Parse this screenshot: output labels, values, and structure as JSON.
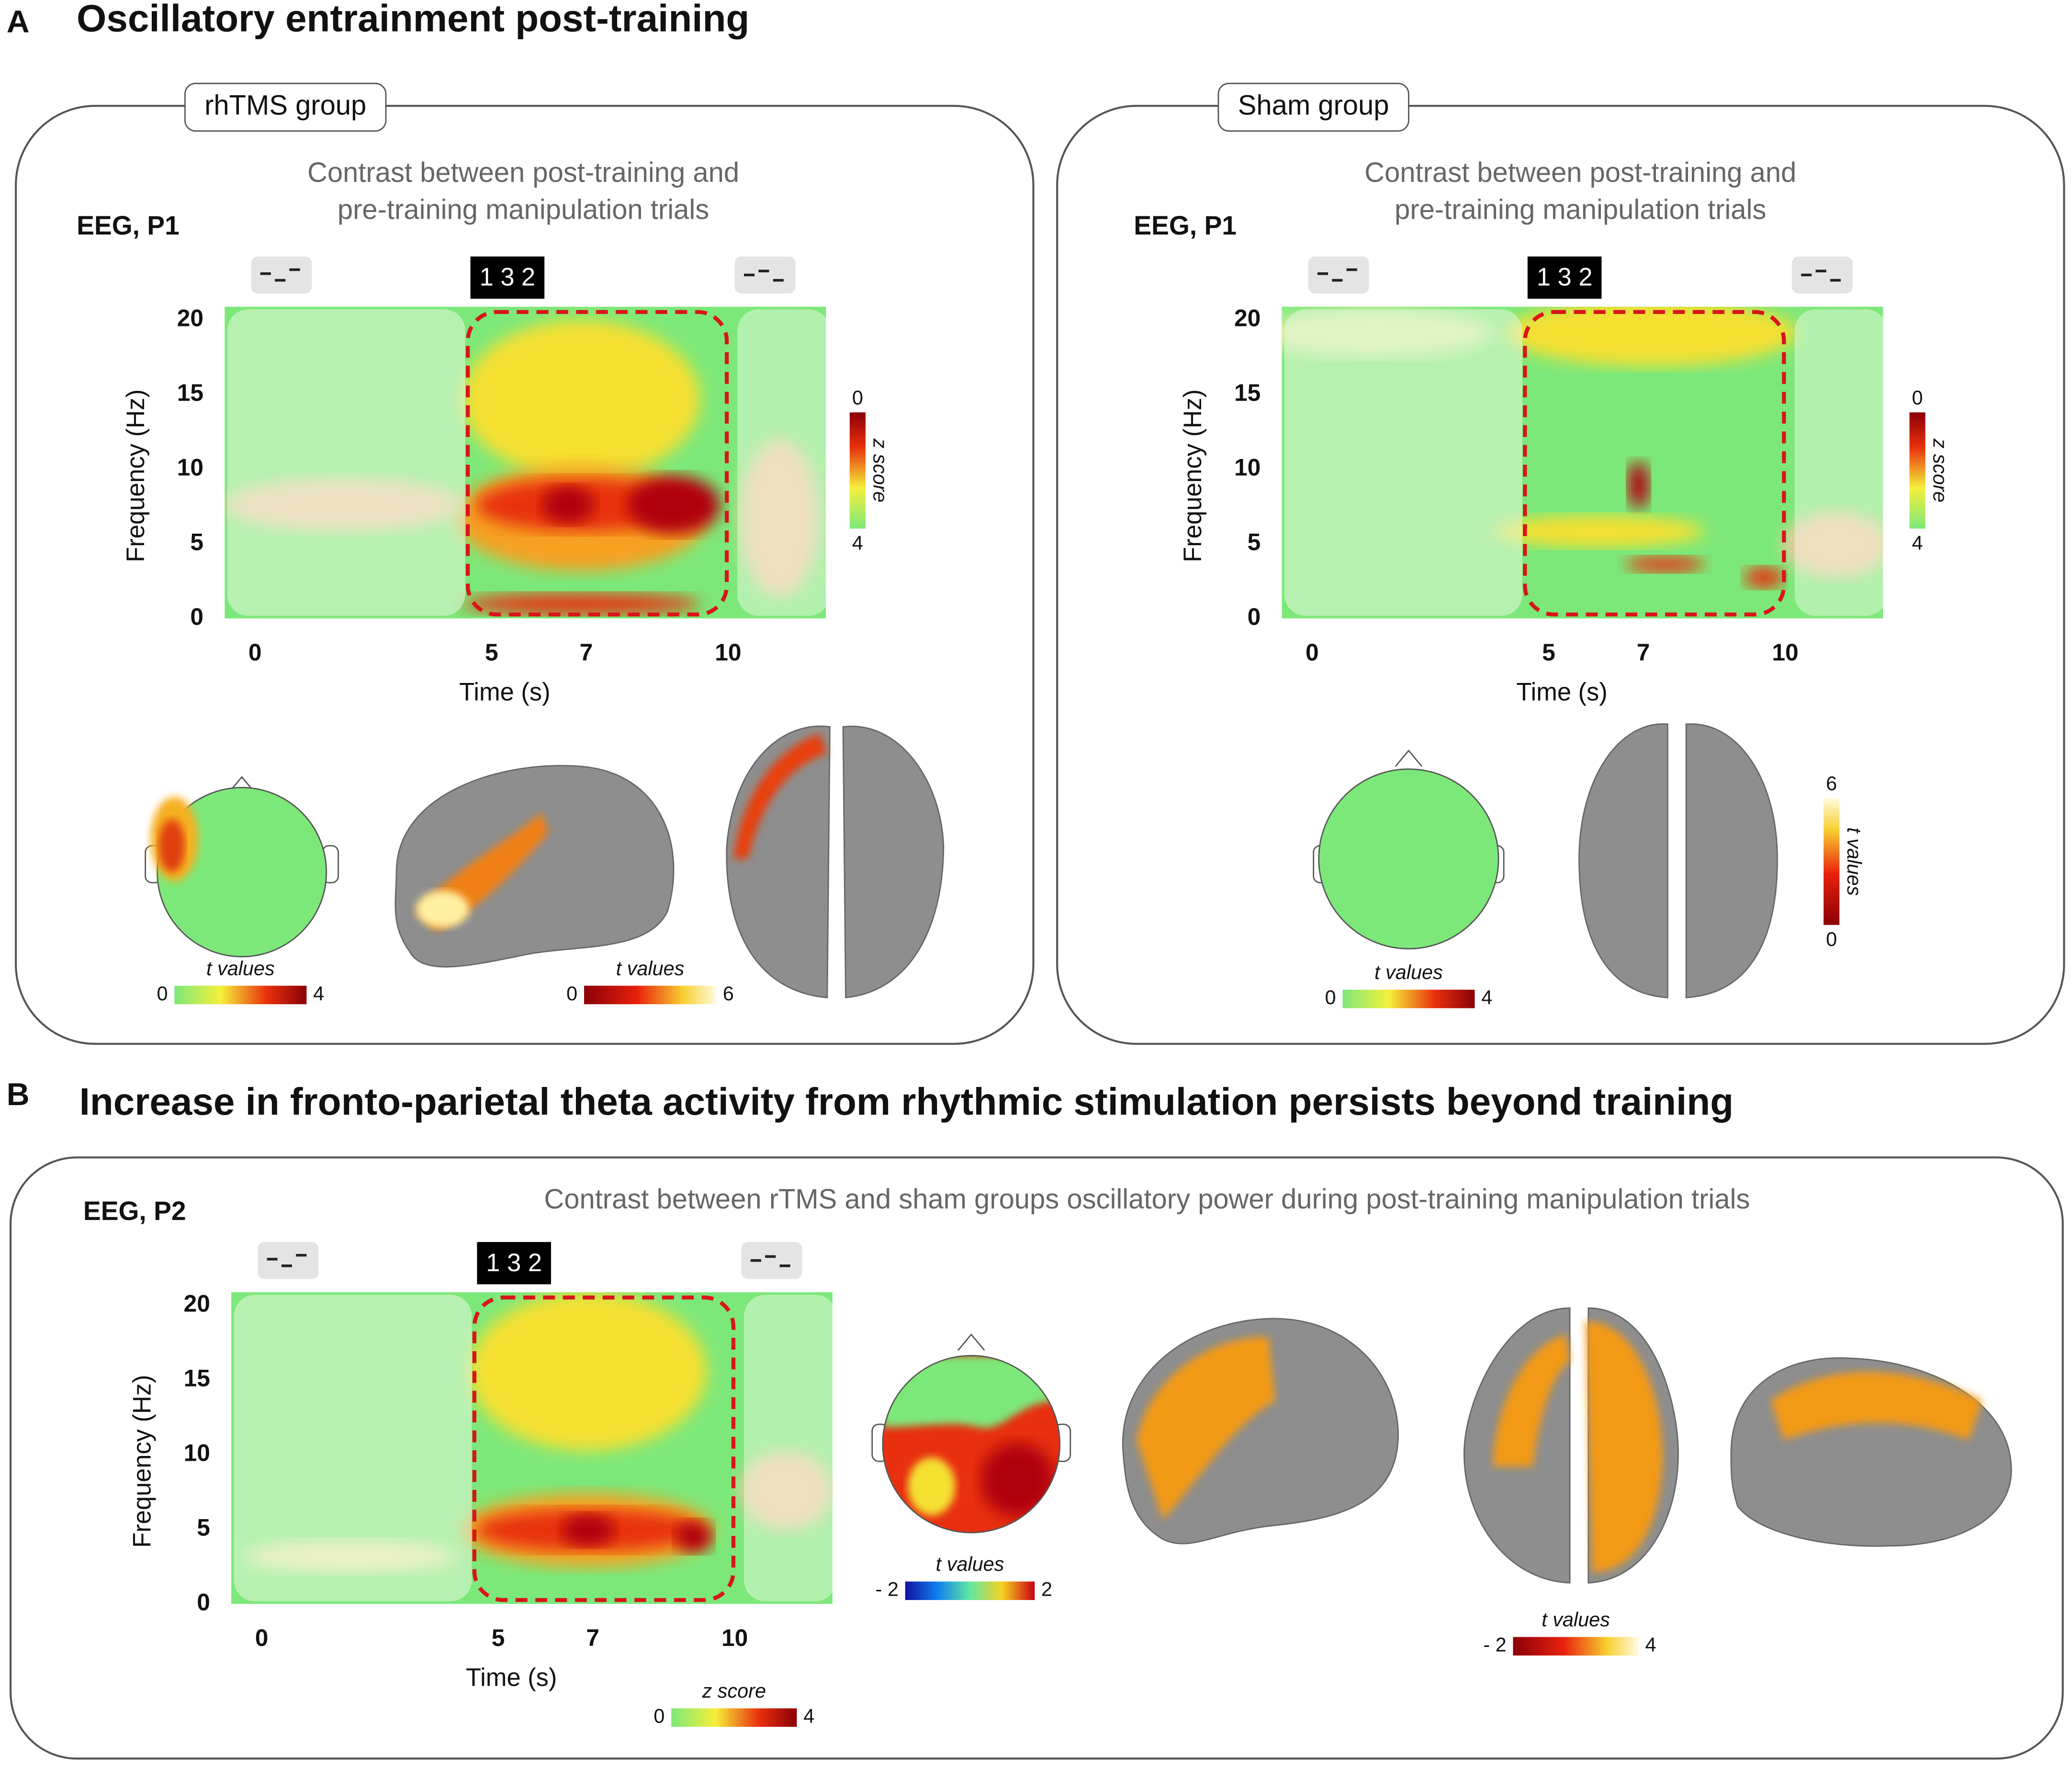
{
  "panel_a": {
    "letter": "A",
    "title": "Oscillatory entrainment post-training",
    "groups": [
      {
        "label": "rhTMS group",
        "subtitle": [
          "Contrast between post-training and",
          "pre-training manipulation trials"
        ],
        "eeg_label": "EEG, P1",
        "sequence": "1 3 2",
        "y_axis_label": "Frequency (Hz)",
        "y_ticks": [
          0,
          5,
          10,
          15,
          20
        ],
        "x_axis_label": "Time (s)",
        "x_ticks": [
          0,
          5,
          7,
          10
        ],
        "spectrogram_scale": {
          "label": "z score",
          "min": 0,
          "max": 4
        },
        "topo_scale": {
          "label": "t values",
          "min": 0,
          "max": 4
        },
        "brain_scale": {
          "label": "t values",
          "min": 0,
          "max": 6
        }
      },
      {
        "label": "Sham group",
        "subtitle": [
          "Contrast between post-training and",
          "pre-training manipulation trials"
        ],
        "eeg_label": "EEG, P1",
        "sequence": "1 3 2",
        "y_axis_label": "Frequency (Hz)",
        "y_ticks": [
          0,
          5,
          10,
          15,
          20
        ],
        "x_axis_label": "Time (s)",
        "x_ticks": [
          0,
          5,
          7,
          10
        ],
        "spectrogram_scale": {
          "label": "z score",
          "min": 0,
          "max": 4
        },
        "topo_scale": {
          "label": "t values",
          "min": 0,
          "max": 4
        },
        "brain_scale": {
          "label": "t values",
          "min": 0,
          "max": 6
        }
      }
    ]
  },
  "panel_b": {
    "letter": "B",
    "title": "Increase in fronto-parietal theta activity from rhythmic stimulation persists beyond training",
    "eeg_label": "EEG, P2",
    "subtitle": "Contrast between rTMS and sham groups oscillatory power during post-training manipulation trials",
    "sequence": "1 3 2",
    "y_axis_label": "Frequency (Hz)",
    "y_ticks": [
      0,
      5,
      10,
      15,
      20
    ],
    "x_axis_label": "Time (s)",
    "x_ticks": [
      0,
      5,
      7,
      10
    ],
    "spectrogram_scale": {
      "label": "z score",
      "min": 0,
      "max": 4
    },
    "topo_scale": {
      "label": "t values",
      "min": "- 2",
      "max": 2
    },
    "brain_scale": {
      "label": "t values",
      "min": "- 2",
      "max": 4
    }
  }
}
